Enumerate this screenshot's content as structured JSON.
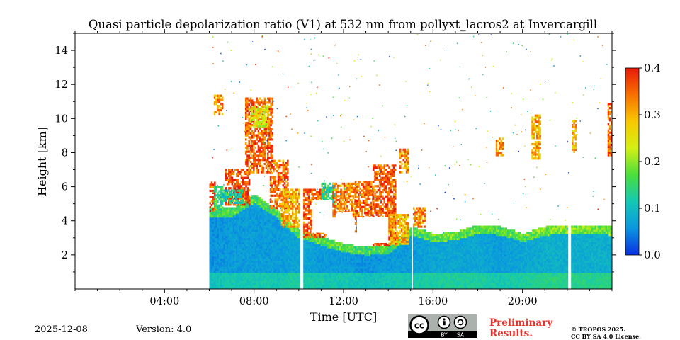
{
  "chart_data": {
    "type": "heatmap",
    "title": "Quasi particle depolarization ratio (V1) at 532 nm from pollyxt_lacros2 at Invercargill",
    "xlabel": "Time [UTC]",
    "ylabel": "Height [km]",
    "x_unit": "hours",
    "xlim": [
      0,
      24
    ],
    "ylim": [
      0,
      15
    ],
    "xticks": [
      4,
      8,
      12,
      16,
      20
    ],
    "xtick_labels": [
      "04:00",
      "08:00",
      "12:00",
      "16:00",
      "20:00"
    ],
    "yticks": [
      2,
      4,
      6,
      8,
      10,
      12,
      14
    ],
    "ytick_labels": [
      "2",
      "4",
      "6",
      "8",
      "10",
      "12",
      "14"
    ],
    "colorbar": {
      "min": 0.0,
      "max": 0.4,
      "ticks": [
        0.0,
        0.1,
        0.2,
        0.3,
        0.4
      ],
      "tick_labels": [
        "0.0",
        "0.1",
        "0.2",
        "0.3",
        "0.4"
      ],
      "colormap": [
        "#0a2fe0",
        "#0a96e0",
        "#14c8b4",
        "#4ade3c",
        "#d4f014",
        "#f8c800",
        "#f87000",
        "#e81a0a"
      ]
    },
    "data_start_hour": 6.0,
    "data_gaps_hours": [
      [
        10.05,
        10.2
      ],
      [
        15.0,
        15.12
      ],
      [
        22.05,
        22.2
      ]
    ],
    "boundary_layer": [
      [
        6.0,
        4.7,
        0.04
      ],
      [
        7.0,
        4.7,
        0.05
      ],
      [
        8.0,
        5.5,
        0.05
      ],
      [
        9.0,
        4.6,
        0.05
      ],
      [
        10.0,
        3.4,
        0.06
      ],
      [
        11.0,
        3.0,
        0.05
      ],
      [
        12.0,
        2.6,
        0.05
      ],
      [
        13.0,
        2.4,
        0.04
      ],
      [
        14.0,
        2.5,
        0.05
      ],
      [
        15.0,
        3.6,
        0.05
      ],
      [
        16.0,
        3.2,
        0.06
      ],
      [
        17.0,
        3.3,
        0.06
      ],
      [
        18.0,
        3.7,
        0.06
      ],
      [
        19.0,
        3.6,
        0.05
      ],
      [
        20.0,
        3.2,
        0.06
      ],
      [
        21.0,
        3.6,
        0.07
      ],
      [
        22.0,
        3.7,
        0.07
      ],
      [
        23.0,
        3.7,
        0.07
      ],
      [
        24.0,
        3.6,
        0.07
      ]
    ],
    "layers": [
      {
        "x0": 6.0,
        "x1": 6.25,
        "y0": 4.5,
        "y1": 6.2,
        "v": 0.36
      },
      {
        "x0": 6.2,
        "x1": 6.6,
        "y0": 4.6,
        "y1": 6.0,
        "v": 0.14
      },
      {
        "x0": 6.2,
        "x1": 6.6,
        "y0": 10.2,
        "y1": 11.3,
        "v": 0.32
      },
      {
        "x0": 6.7,
        "x1": 7.8,
        "y0": 4.9,
        "y1": 7.0,
        "v": 0.37
      },
      {
        "x0": 6.6,
        "x1": 7.5,
        "y0": 5.0,
        "y1": 5.8,
        "v": 0.12
      },
      {
        "x0": 7.6,
        "x1": 8.8,
        "y0": 6.8,
        "y1": 11.2,
        "v": 0.35
      },
      {
        "x0": 7.8,
        "x1": 8.6,
        "y0": 9.5,
        "y1": 10.8,
        "v": 0.25
      },
      {
        "x0": 8.7,
        "x1": 9.5,
        "y0": 4.7,
        "y1": 7.5,
        "v": 0.35
      },
      {
        "x0": 9.2,
        "x1": 10.0,
        "y0": 3.6,
        "y1": 5.8,
        "v": 0.3
      },
      {
        "x0": 10.2,
        "x1": 11.2,
        "y0": 3.0,
        "y1": 5.8,
        "v": 0.36
      },
      {
        "x0": 11.0,
        "x1": 11.6,
        "y0": 4.8,
        "y1": 6.2,
        "v": 0.13
      },
      {
        "x0": 11.5,
        "x1": 12.5,
        "y0": 4.2,
        "y1": 6.2,
        "v": 0.33
      },
      {
        "x0": 12.5,
        "x1": 13.3,
        "y0": 3.2,
        "y1": 6.3,
        "v": 0.35
      },
      {
        "x0": 13.3,
        "x1": 14.3,
        "y0": 2.5,
        "y1": 7.2,
        "v": 0.36
      },
      {
        "x0": 14.0,
        "x1": 14.9,
        "y0": 2.6,
        "y1": 4.4,
        "v": 0.3
      },
      {
        "x0": 14.5,
        "x1": 14.9,
        "y0": 6.8,
        "y1": 8.2,
        "v": 0.33
      },
      {
        "x0": 15.1,
        "x1": 15.6,
        "y0": 3.6,
        "y1": 4.8,
        "v": 0.33
      },
      {
        "x0": 20.4,
        "x1": 20.8,
        "y0": 7.6,
        "y1": 10.2,
        "v": 0.3
      },
      {
        "x0": 23.8,
        "x1": 24.0,
        "y0": 7.8,
        "y1": 10.8,
        "v": 0.35
      },
      {
        "x0": 22.2,
        "x1": 22.4,
        "y0": 8.0,
        "y1": 9.8,
        "v": 0.3
      },
      {
        "x0": 18.8,
        "x1": 19.1,
        "y0": 7.8,
        "y1": 8.8,
        "v": 0.32
      }
    ],
    "clear_regions": [
      {
        "x0": 10.6,
        "x1": 11.5,
        "y0": 3.3,
        "y1": 5.2
      },
      {
        "x0": 11.7,
        "x1": 12.4,
        "y0": 3.0,
        "y1": 4.5
      },
      {
        "x0": 12.6,
        "x1": 14.0,
        "y0": 2.7,
        "y1": 4.2
      }
    ]
  },
  "footer": {
    "date": "2025-12-08",
    "version": "Version: 4.0",
    "preliminary_line1": "Preliminary",
    "preliminary_line2": "Results.",
    "copyright_line1": "© TROPOS 2025.",
    "copyright_line2": "CC BY SA 4.0 License.",
    "cc_badge_by": "BY",
    "cc_badge_sa": "SA"
  }
}
